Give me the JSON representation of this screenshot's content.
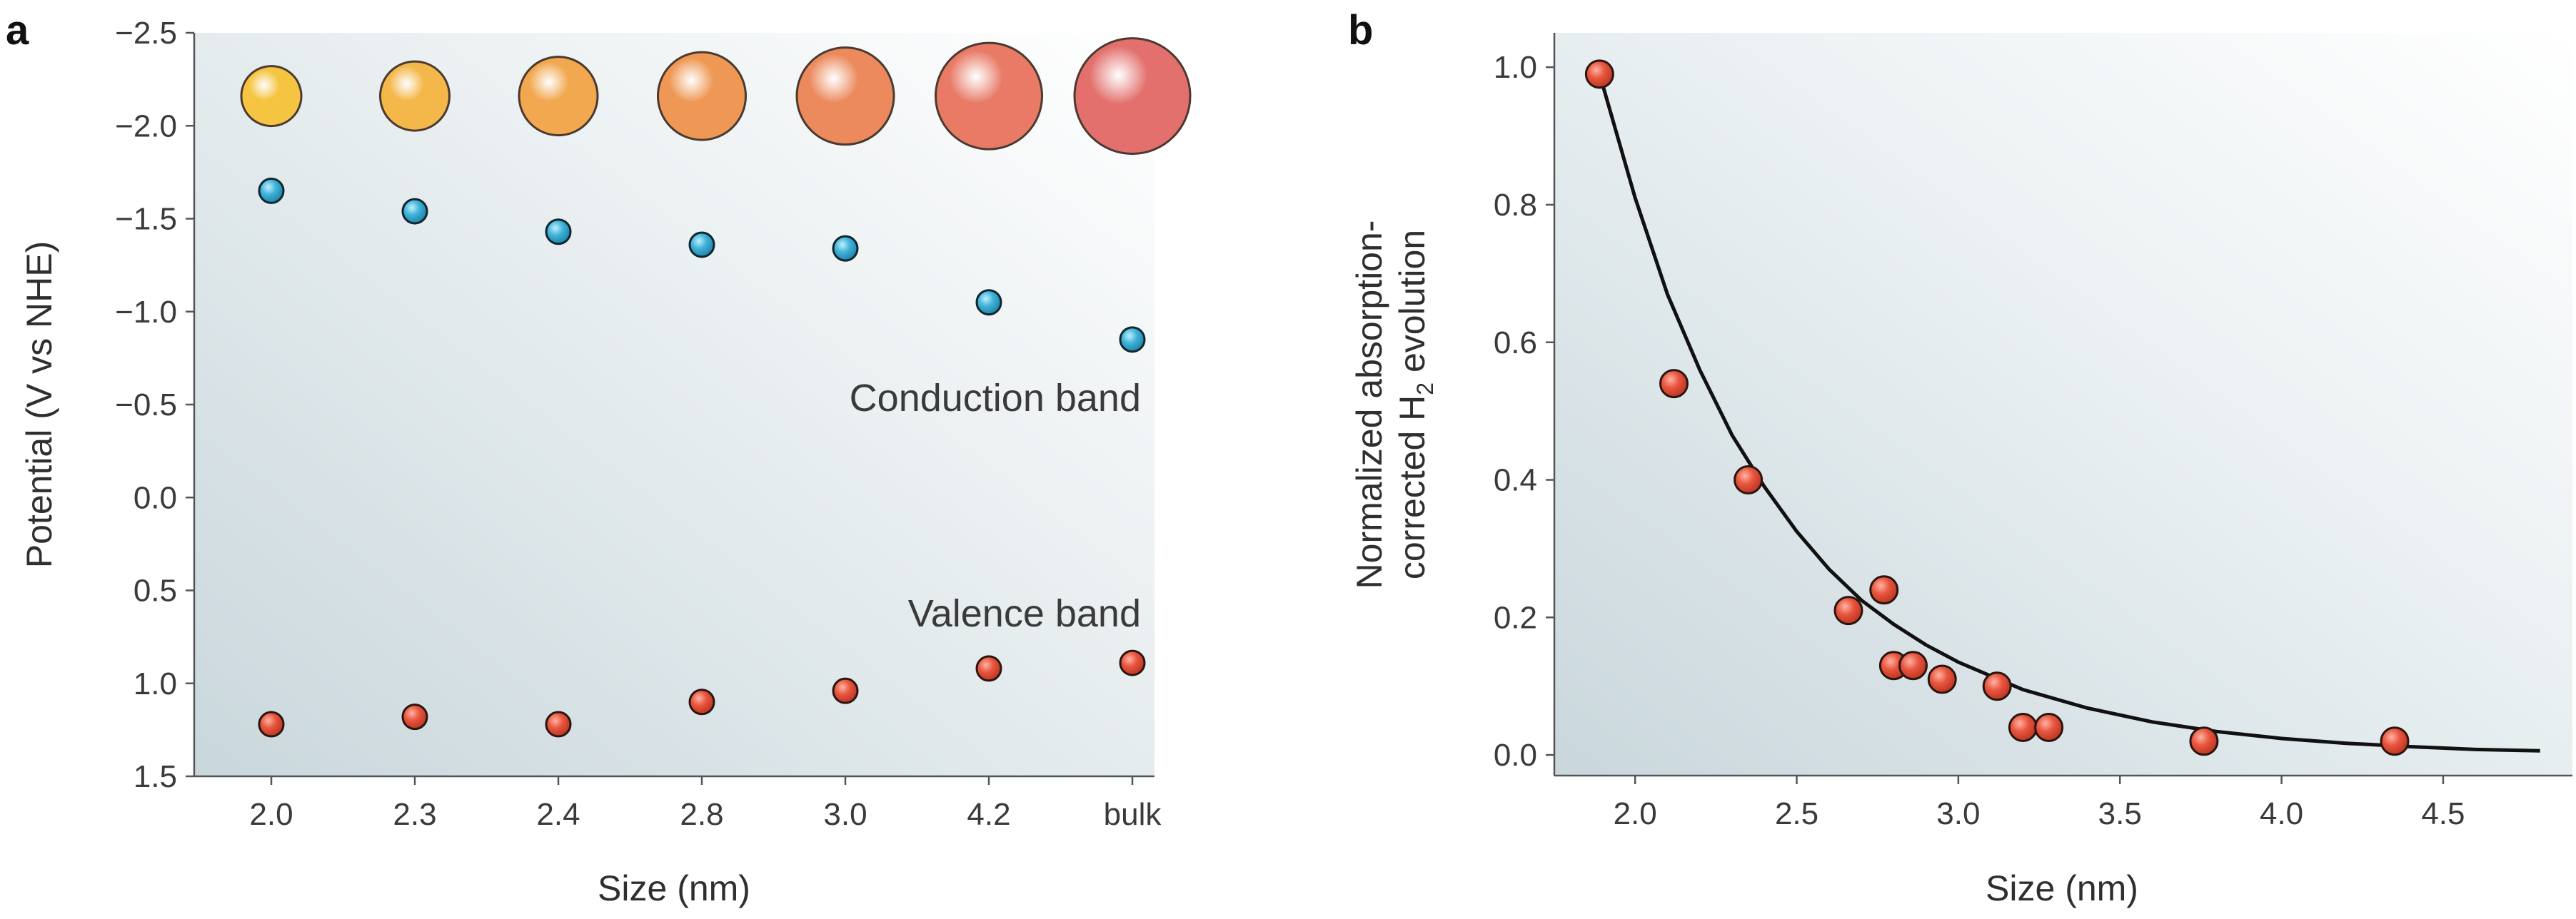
{
  "panels": {
    "a": {
      "letter": "a"
    },
    "b": {
      "letter": "b"
    }
  },
  "chart_data": [
    {
      "panel": "a",
      "type": "scatter",
      "xlabel": "Size (nm)",
      "ylabel": "Potential (V vs NHE)",
      "categories": [
        "2.0",
        "2.3",
        "2.4",
        "2.8",
        "3.0",
        "4.2",
        "bulk"
      ],
      "y_reversed": true,
      "ylim": [
        1.5,
        -2.5
      ],
      "yticks": [
        -2.5,
        -2.0,
        -1.5,
        -1.0,
        -0.5,
        0.0,
        0.5,
        1.0,
        1.5
      ],
      "ytick_labels": [
        "−2.5",
        "−2.0",
        "−1.5",
        "−1.0",
        "−0.5",
        "0.0",
        "0.5",
        "1.0",
        "1.5"
      ],
      "grid": false,
      "series": [
        {
          "key": "conduction",
          "values": [
            -1.65,
            -1.54,
            -1.43,
            -1.36,
            -1.34,
            -1.05,
            -0.85
          ],
          "color": "#3aa8d0"
        },
        {
          "key": "valence",
          "values": [
            1.22,
            1.18,
            1.22,
            1.1,
            1.04,
            0.92,
            0.89
          ],
          "color": "#e04a34"
        }
      ],
      "annotations": [
        {
          "text": "Conduction band"
        },
        {
          "text": "Valence band"
        }
      ],
      "quantum_dot_sizes": [
        1,
        2,
        3,
        4,
        5,
        6,
        7
      ],
      "quantum_dot_colors": [
        "#f5c542",
        "#f4b84a",
        "#f2a84f",
        "#ef9855",
        "#ec8a5d",
        "#e87a66",
        "#e3706d"
      ],
      "quantum_dot_level": -2.16
    },
    {
      "panel": "b",
      "type": "scatter",
      "xlabel": "Size (nm)",
      "ylabel_line1": "Normalized absorption-",
      "ylabel_line2_main": "corrected H",
      "ylabel_line2_sub": "2",
      "ylabel_line2_tail": " evolution",
      "xlim": [
        1.75,
        4.9
      ],
      "ylim": [
        -0.03,
        1.05
      ],
      "xticks": [
        2.0,
        2.5,
        3.0,
        3.5,
        4.0,
        4.5
      ],
      "xtick_labels": [
        "2.0",
        "2.5",
        "3.0",
        "3.5",
        "4.0",
        "4.5"
      ],
      "yticks": [
        0.0,
        0.2,
        0.4,
        0.6,
        0.8,
        1.0
      ],
      "ytick_labels": [
        "0.0",
        "0.2",
        "0.4",
        "0.6",
        "0.8",
        "1.0"
      ],
      "grid": false,
      "points": [
        {
          "x": 1.89,
          "y": 0.99
        },
        {
          "x": 2.12,
          "y": 0.54
        },
        {
          "x": 2.35,
          "y": 0.4
        },
        {
          "x": 2.66,
          "y": 0.21
        },
        {
          "x": 2.77,
          "y": 0.24
        },
        {
          "x": 2.8,
          "y": 0.13
        },
        {
          "x": 2.86,
          "y": 0.13
        },
        {
          "x": 2.95,
          "y": 0.11
        },
        {
          "x": 3.12,
          "y": 0.1
        },
        {
          "x": 3.2,
          "y": 0.04
        },
        {
          "x": 3.28,
          "y": 0.04
        },
        {
          "x": 3.76,
          "y": 0.02
        },
        {
          "x": 4.35,
          "y": 0.02
        }
      ],
      "fit_curve": {
        "x": [
          1.89,
          2.0,
          2.1,
          2.2,
          2.3,
          2.4,
          2.5,
          2.6,
          2.7,
          2.8,
          2.9,
          3.0,
          3.2,
          3.4,
          3.6,
          3.8,
          4.0,
          4.2,
          4.4,
          4.6,
          4.8
        ],
        "y": [
          0.99,
          0.81,
          0.67,
          0.56,
          0.465,
          0.39,
          0.325,
          0.27,
          0.225,
          0.19,
          0.16,
          0.135,
          0.095,
          0.068,
          0.048,
          0.034,
          0.024,
          0.017,
          0.012,
          0.008,
          0.006
        ]
      },
      "point_color": "#e04a34",
      "curve_color": "#111111"
    }
  ]
}
